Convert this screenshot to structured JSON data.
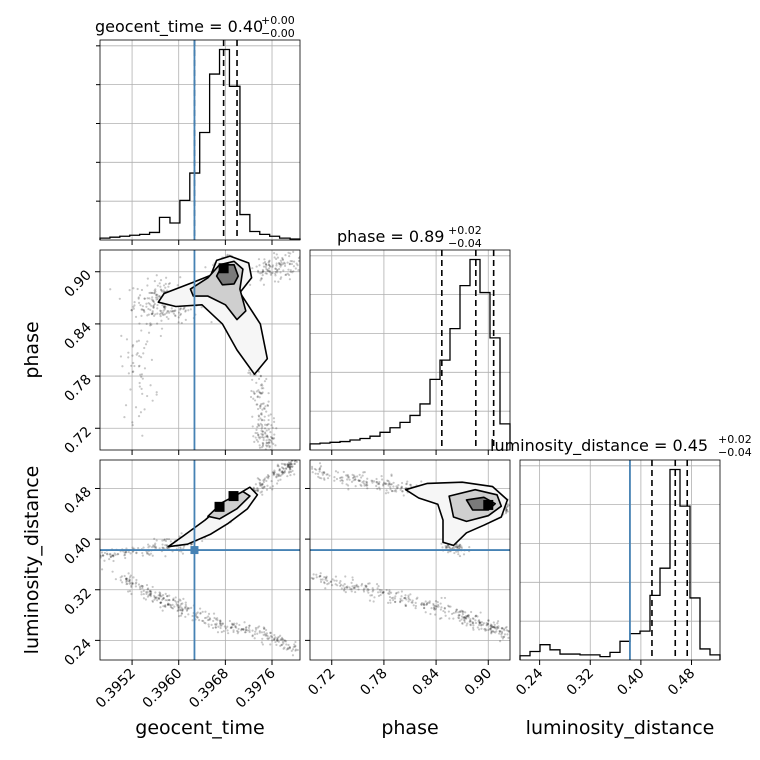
{
  "chart_data": {
    "type": "corner",
    "parameters": [
      {
        "name": "geocent_time",
        "axis_label": "geocent_time",
        "range": [
          0.39465,
          0.39808
        ],
        "ticks": [
          0.3952,
          0.396,
          0.3968,
          0.3976
        ],
        "tick_labels": [
          "0.3952",
          "0.3960",
          "0.3968",
          "0.3976"
        ],
        "injection": 0.39627,
        "quantiles": [
          0.39627,
          0.39677,
          0.397
        ],
        "title": {
          "main": "geocent_time = 0.40",
          "sup": "+0.00",
          "sub": "−0.00"
        },
        "hist_edges": [
          0.39465,
          0.39482,
          0.39499,
          0.39516,
          0.39533,
          0.3955,
          0.39567,
          0.39585,
          0.39602,
          0.39619,
          0.39636,
          0.39653,
          0.3967,
          0.39687,
          0.39705,
          0.39722,
          0.39739,
          0.39756,
          0.39773,
          0.39791,
          0.39808
        ],
        "hist_counts": [
          0.2,
          0.3,
          0.4,
          0.5,
          0.6,
          0.8,
          2.4,
          1.8,
          4.2,
          7.1,
          11.4,
          17.6,
          20.2,
          16.3,
          2.7,
          0.9,
          0.6,
          0.4,
          0.2,
          0.1
        ]
      },
      {
        "name": "phase",
        "axis_label": "phase",
        "range": [
          0.695,
          0.925
        ],
        "ticks": [
          0.72,
          0.78,
          0.84,
          0.9
        ],
        "tick_labels": [
          "0.72",
          "0.78",
          "0.84",
          "0.90"
        ],
        "injection": null,
        "quantiles": [
          0.8466,
          0.8857,
          0.9062
        ],
        "title": {
          "main": "phase = 0.89",
          "sup": "+0.02",
          "sub": "−0.04"
        },
        "hist_edges": [
          0.695,
          0.7065,
          0.718,
          0.7295,
          0.741,
          0.7525,
          0.764,
          0.7755,
          0.787,
          0.7985,
          0.81,
          0.8215,
          0.833,
          0.8445,
          0.856,
          0.8675,
          0.879,
          0.8905,
          0.902,
          0.9135,
          0.925
        ],
        "hist_counts": [
          0.8,
          0.9,
          1.0,
          1.1,
          1.3,
          1.5,
          1.8,
          2.3,
          2.9,
          3.6,
          4.5,
          6.0,
          9.2,
          11.7,
          15.8,
          21.4,
          24.8,
          20.5,
          14.6,
          3.4
        ]
      },
      {
        "name": "luminosity_distance",
        "axis_label": "luminosity_distance",
        "range": [
          0.209,
          0.525
        ],
        "ticks": [
          0.24,
          0.32,
          0.4,
          0.48
        ],
        "tick_labels": [
          "0.24",
          "0.32",
          "0.40",
          "0.48"
        ],
        "injection": 0.3827,
        "quantiles": [
          0.4175,
          0.4543,
          0.4732
        ],
        "title": {
          "main": "luminosity_distance = 0.45",
          "sup": "+0.02",
          "sub": "−0.04"
        },
        "hist_edges": [
          0.209,
          0.2248,
          0.2406,
          0.2564,
          0.2722,
          0.288,
          0.3038,
          0.3196,
          0.3354,
          0.3512,
          0.367,
          0.3828,
          0.3986,
          0.4144,
          0.4302,
          0.446,
          0.4618,
          0.4776,
          0.4934,
          0.5092,
          0.525
        ],
        "hist_counts": [
          0.5,
          1.0,
          1.8,
          1.2,
          0.7,
          0.7,
          0.6,
          0.6,
          0.4,
          0.9,
          2.2,
          3.1,
          3.4,
          7.6,
          10.8,
          22.4,
          18.1,
          7.3,
          1.3,
          0.6
        ]
      }
    ],
    "grid": true,
    "injection_color": "#4682b4"
  }
}
